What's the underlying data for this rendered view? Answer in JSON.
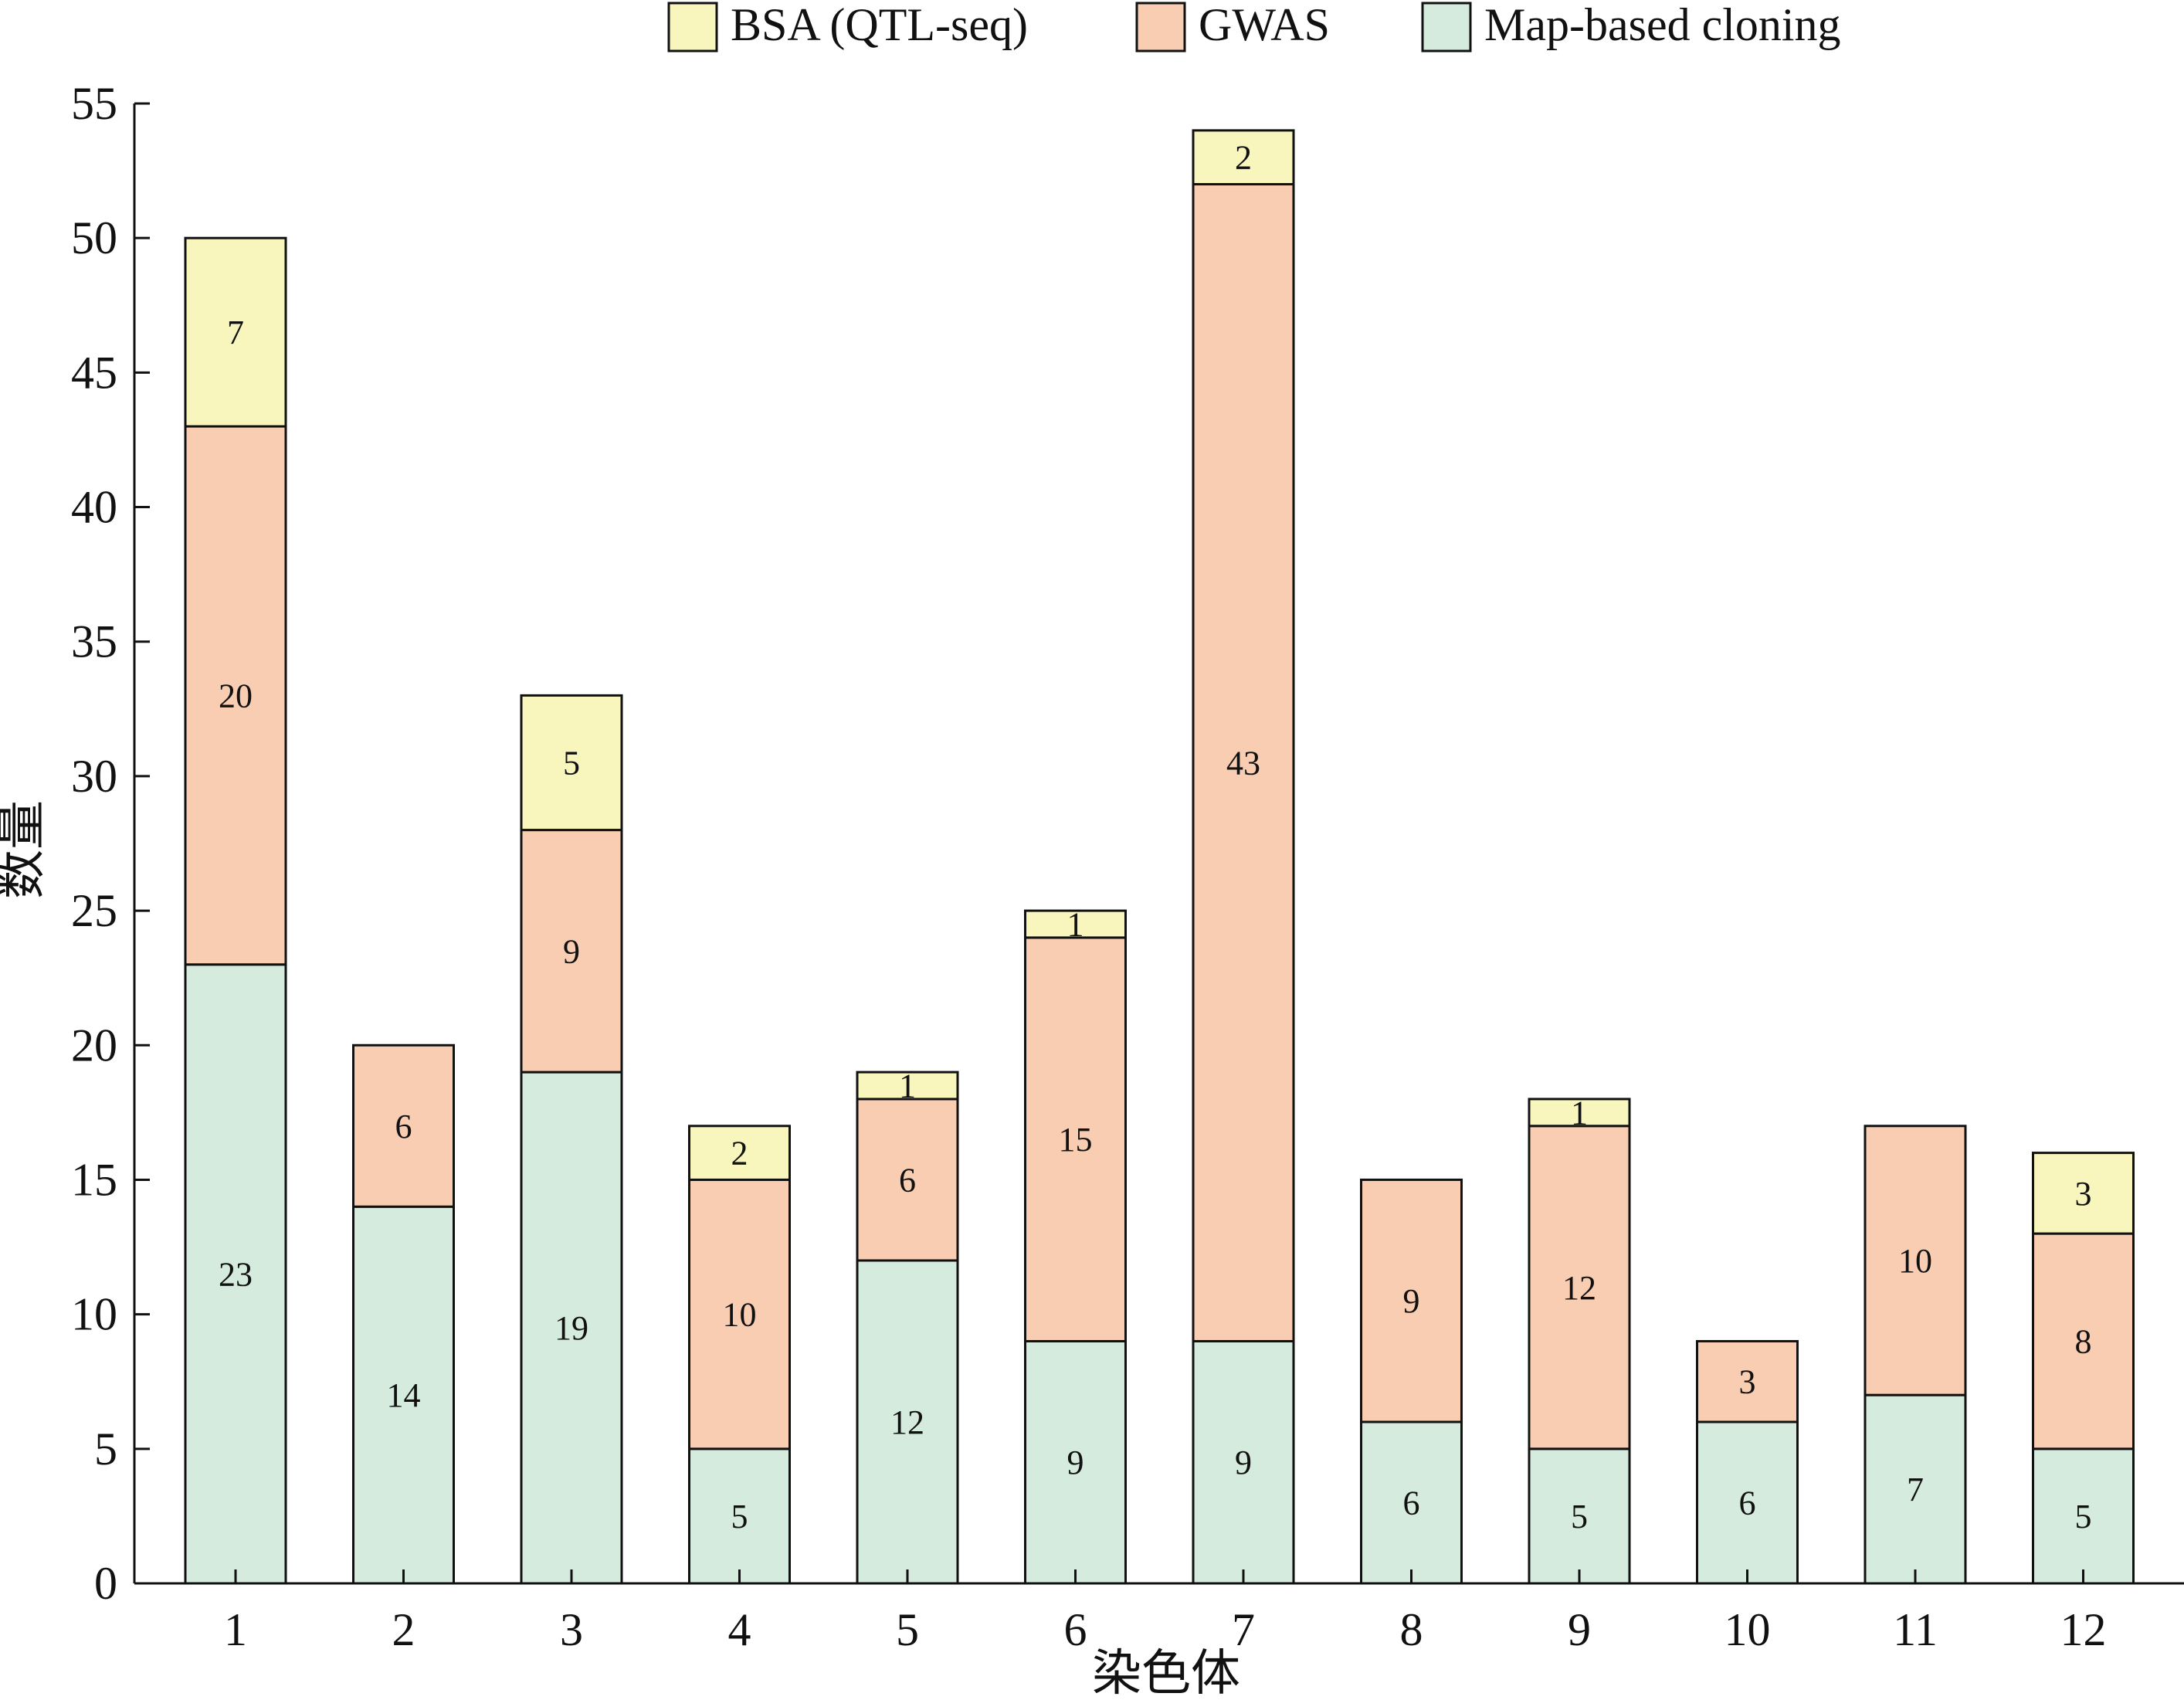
{
  "chart_data": {
    "type": "bar",
    "stacked": true,
    "title": "",
    "xlabel": "染色体",
    "ylabel": "数量",
    "ylim": [
      0,
      55
    ],
    "yticks": [
      0,
      5,
      10,
      15,
      20,
      25,
      30,
      35,
      40,
      45,
      50,
      55
    ],
    "grid": false,
    "legend_position": "top",
    "categories": [
      "1",
      "2",
      "3",
      "4",
      "5",
      "6",
      "7",
      "8",
      "9",
      "10",
      "11",
      "12"
    ],
    "series": [
      {
        "name": "Map-based cloning",
        "color": "#d5ebde",
        "values": [
          23,
          14,
          19,
          5,
          12,
          9,
          9,
          6,
          5,
          6,
          7,
          5
        ]
      },
      {
        "name": "GWAS",
        "color": "#f8cdb2",
        "values": [
          20,
          6,
          9,
          10,
          6,
          15,
          43,
          9,
          12,
          3,
          10,
          8
        ]
      },
      {
        "name": "BSA (QTL-seq)",
        "color": "#f8f6bd",
        "values": [
          7,
          0,
          5,
          2,
          1,
          1,
          2,
          0,
          1,
          0,
          0,
          3
        ]
      }
    ],
    "legend_order": [
      "BSA (QTL-seq)",
      "GWAS",
      "Map-based cloning"
    ]
  }
}
